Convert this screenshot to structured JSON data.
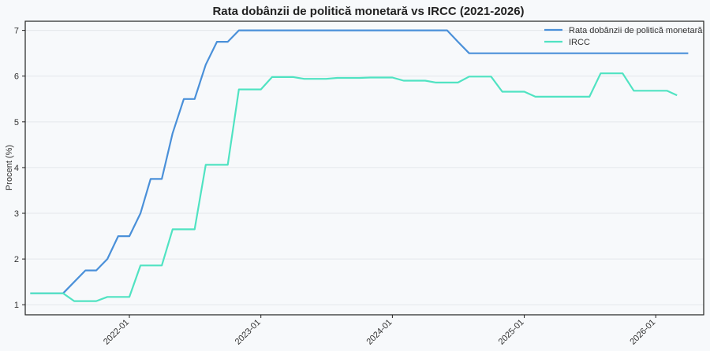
{
  "chart_data": {
    "type": "line",
    "title": "Rata dobânzii de politică monetară vs IRCC (2021-2026)",
    "xlabel": "",
    "ylabel": "Procent (%)",
    "x_ticks": [
      "2022-01",
      "2023-01",
      "2024-01",
      "2025-01",
      "2026-01"
    ],
    "y_ticks": [
      "1",
      "2",
      "3",
      "4",
      "5",
      "6",
      "7"
    ],
    "ylim": [
      0.78,
      7.2
    ],
    "xlim": [
      "2021-03-18",
      "2026-05-14"
    ],
    "grid": true,
    "legend_position": "top-right",
    "series": [
      {
        "name": "Rata dobânzii de politică monetară",
        "color": "#4a90d9",
        "points": [
          [
            "2021-04-01",
            1.25
          ],
          [
            "2021-05-01",
            1.25
          ],
          [
            "2021-06-01",
            1.25
          ],
          [
            "2021-07-01",
            1.25
          ],
          [
            "2021-08-01",
            1.5
          ],
          [
            "2021-09-01",
            1.75
          ],
          [
            "2021-10-01",
            1.75
          ],
          [
            "2021-11-01",
            2.0
          ],
          [
            "2021-12-01",
            2.5
          ],
          [
            "2022-01-01",
            2.5
          ],
          [
            "2022-02-01",
            3.0
          ],
          [
            "2022-03-01",
            3.75
          ],
          [
            "2022-04-01",
            3.75
          ],
          [
            "2022-05-01",
            4.75
          ],
          [
            "2022-06-01",
            5.5
          ],
          [
            "2022-07-01",
            5.5
          ],
          [
            "2022-08-01",
            6.25
          ],
          [
            "2022-09-01",
            6.75
          ],
          [
            "2022-10-01",
            6.75
          ],
          [
            "2022-11-01",
            7.0
          ],
          [
            "2022-12-01",
            7.0
          ],
          [
            "2023-01-01",
            7.0
          ],
          [
            "2023-02-01",
            7.0
          ],
          [
            "2023-03-01",
            7.0
          ],
          [
            "2023-04-01",
            7.0
          ],
          [
            "2023-05-01",
            7.0
          ],
          [
            "2023-06-01",
            7.0
          ],
          [
            "2023-07-01",
            7.0
          ],
          [
            "2023-08-01",
            7.0
          ],
          [
            "2023-09-01",
            7.0
          ],
          [
            "2023-10-01",
            7.0
          ],
          [
            "2023-11-01",
            7.0
          ],
          [
            "2023-12-01",
            7.0
          ],
          [
            "2024-01-01",
            7.0
          ],
          [
            "2024-02-01",
            7.0
          ],
          [
            "2024-03-01",
            7.0
          ],
          [
            "2024-04-01",
            7.0
          ],
          [
            "2024-05-01",
            7.0
          ],
          [
            "2024-06-01",
            7.0
          ],
          [
            "2024-07-01",
            6.75
          ],
          [
            "2024-08-01",
            6.5
          ],
          [
            "2024-09-01",
            6.5
          ],
          [
            "2024-10-01",
            6.5
          ],
          [
            "2024-11-01",
            6.5
          ],
          [
            "2024-12-01",
            6.5
          ],
          [
            "2025-01-01",
            6.5
          ],
          [
            "2025-02-01",
            6.5
          ],
          [
            "2025-03-01",
            6.5
          ],
          [
            "2025-04-01",
            6.5
          ],
          [
            "2025-05-01",
            6.5
          ],
          [
            "2025-06-01",
            6.5
          ],
          [
            "2025-07-01",
            6.5
          ],
          [
            "2025-08-01",
            6.5
          ],
          [
            "2025-09-01",
            6.5
          ],
          [
            "2025-10-01",
            6.5
          ],
          [
            "2025-11-01",
            6.5
          ],
          [
            "2025-12-01",
            6.5
          ],
          [
            "2026-01-01",
            6.5
          ],
          [
            "2026-02-01",
            6.5
          ],
          [
            "2026-03-01",
            6.5
          ],
          [
            "2026-04-01",
            6.5
          ]
        ]
      },
      {
        "name": "IRCC",
        "color": "#50e3c2",
        "points": [
          [
            "2021-04-01",
            1.25
          ],
          [
            "2021-07-01",
            1.25
          ],
          [
            "2021-08-01",
            1.08
          ],
          [
            "2021-10-01",
            1.08
          ],
          [
            "2021-11-01",
            1.17
          ],
          [
            "2022-01-01",
            1.17
          ],
          [
            "2022-02-01",
            1.86
          ],
          [
            "2022-04-01",
            1.86
          ],
          [
            "2022-05-01",
            2.65
          ],
          [
            "2022-07-01",
            2.65
          ],
          [
            "2022-08-01",
            4.06
          ],
          [
            "2022-10-01",
            4.06
          ],
          [
            "2022-11-01",
            5.71
          ],
          [
            "2023-01-01",
            5.71
          ],
          [
            "2023-02-01",
            5.98
          ],
          [
            "2023-04-01",
            5.98
          ],
          [
            "2023-05-01",
            5.94
          ],
          [
            "2023-07-01",
            5.94
          ],
          [
            "2023-08-01",
            5.96
          ],
          [
            "2023-10-01",
            5.96
          ],
          [
            "2023-11-01",
            5.97
          ],
          [
            "2024-01-01",
            5.97
          ],
          [
            "2024-02-01",
            5.9
          ],
          [
            "2024-04-01",
            5.9
          ],
          [
            "2024-05-01",
            5.86
          ],
          [
            "2024-07-01",
            5.86
          ],
          [
            "2024-08-01",
            5.99
          ],
          [
            "2024-10-01",
            5.99
          ],
          [
            "2024-11-01",
            5.66
          ],
          [
            "2025-01-01",
            5.66
          ],
          [
            "2025-02-01",
            5.55
          ],
          [
            "2025-07-01",
            5.55
          ],
          [
            "2025-08-01",
            6.06
          ],
          [
            "2025-10-01",
            6.06
          ],
          [
            "2025-11-01",
            5.68
          ],
          [
            "2026-01-01",
            5.68
          ],
          [
            "2026-02-01",
            5.68
          ],
          [
            "2026-03-01",
            5.58
          ]
        ]
      }
    ]
  }
}
